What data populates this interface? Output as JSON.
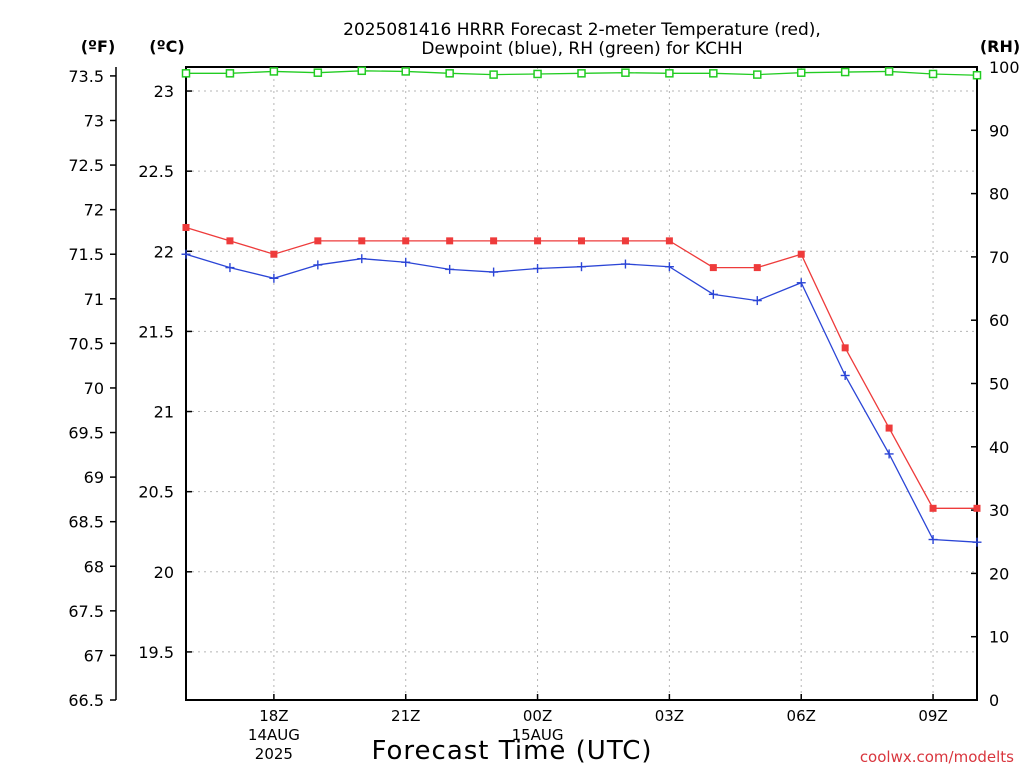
{
  "chart_data": {
    "type": "line",
    "title": "2025081416 HRRR Forecast 2-meter Temperature (red),",
    "title_line2": "Dewpoint (blue), RH (green) for KCHH",
    "xlabel": "Forecast Time (UTC)",
    "credit": "coolwx.com/modelts",
    "units": {
      "left_f": "(ºF)",
      "left_c": "(ºC)",
      "right": "(RH)"
    },
    "x_ticks": [
      {
        "label": "18Z",
        "sub1": "14AUG",
        "sub2": "2025",
        "x": 2
      },
      {
        "label": "21Z",
        "sub1": "",
        "sub2": "",
        "x": 5
      },
      {
        "label": "00Z",
        "sub1": "15AUG",
        "sub2": "",
        "x": 8
      },
      {
        "label": "03Z",
        "sub1": "",
        "sub2": "",
        "x": 11
      },
      {
        "label": "06Z",
        "sub1": "",
        "sub2": "",
        "x": 14
      },
      {
        "label": "09Z",
        "sub1": "",
        "sub2": "",
        "x": 17
      }
    ],
    "x_grid": [
      2,
      5,
      8,
      11,
      14,
      17
    ],
    "xlim": [
      0,
      18
    ],
    "ylim_c": [
      19.2,
      23.15
    ],
    "ylim_f": [
      66.5,
      73.6
    ],
    "ylim_rh": [
      0,
      100
    ],
    "c_ticks": [
      19.5,
      20,
      20.5,
      21,
      21.5,
      22,
      22.5,
      23
    ],
    "f_ticks": [
      66.5,
      67,
      67.5,
      68,
      68.5,
      69,
      69.5,
      70,
      70.5,
      71,
      71.5,
      72,
      72.5,
      73,
      73.5
    ],
    "rh_ticks": [
      0,
      10,
      20,
      30,
      40,
      50,
      60,
      70,
      80,
      90,
      100
    ],
    "grid": true,
    "series": [
      {
        "name": "Temperature",
        "units": "ºF",
        "color": "#ee3b3b",
        "marker": "square-filled",
        "x": [
          0,
          1,
          2,
          3,
          4,
          5,
          6,
          7,
          8,
          9,
          10,
          11,
          12,
          13,
          14,
          15,
          16,
          17,
          18
        ],
        "values": [
          71.8,
          71.65,
          71.5,
          71.65,
          71.65,
          71.65,
          71.65,
          71.65,
          71.65,
          71.65,
          71.65,
          71.65,
          71.35,
          71.35,
          71.5,
          70.45,
          69.55,
          68.65,
          68.65
        ]
      },
      {
        "name": "Dewpoint",
        "units": "ºF",
        "color": "#2b45d6",
        "marker": "plus",
        "x": [
          0,
          1,
          2,
          3,
          4,
          5,
          6,
          7,
          8,
          9,
          10,
          11,
          12,
          13,
          14,
          15,
          16,
          17,
          18
        ],
        "values": [
          71.5,
          71.35,
          71.23,
          71.38,
          71.45,
          71.41,
          71.33,
          71.3,
          71.34,
          71.36,
          71.39,
          71.36,
          71.05,
          70.98,
          71.18,
          70.14,
          69.26,
          68.3,
          68.27
        ]
      },
      {
        "name": "RH",
        "units": "%",
        "color": "#22cc22",
        "marker": "square-open",
        "x": [
          0,
          1,
          2,
          3,
          4,
          5,
          6,
          7,
          8,
          9,
          10,
          11,
          12,
          13,
          14,
          15,
          16,
          17,
          18
        ],
        "values": [
          99,
          99,
          99.3,
          99.1,
          99.4,
          99.3,
          99,
          98.8,
          98.9,
          99,
          99.1,
          99,
          99,
          98.8,
          99.1,
          99.2,
          99.3,
          98.9,
          98.7
        ]
      }
    ]
  }
}
